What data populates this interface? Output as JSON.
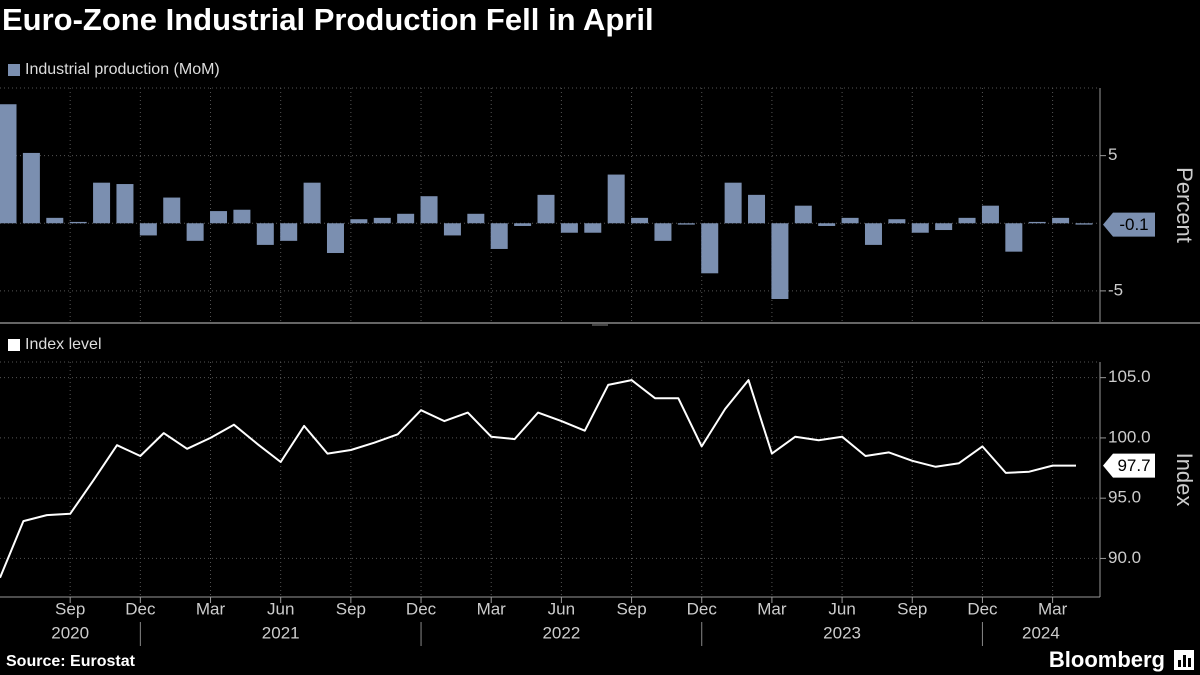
{
  "title": "Euro-Zone Industrial Production Fell in April",
  "source": "Source: Eurostat",
  "brand": "Bloomberg",
  "x_axis": {
    "count": 47,
    "ticks": [
      {
        "value": 3,
        "label": "Sep"
      },
      {
        "value": 6,
        "label": "Dec"
      },
      {
        "value": 9,
        "label": "Mar"
      },
      {
        "value": 12,
        "label": "Jun"
      },
      {
        "value": 15,
        "label": "Sep"
      },
      {
        "value": 18,
        "label": "Dec"
      },
      {
        "value": 21,
        "label": "Mar"
      },
      {
        "value": 24,
        "label": "Jun"
      },
      {
        "value": 27,
        "label": "Sep"
      },
      {
        "value": 30,
        "label": "Dec"
      },
      {
        "value": 33,
        "label": "Mar"
      },
      {
        "value": 36,
        "label": "Jun"
      },
      {
        "value": 39,
        "label": "Sep"
      },
      {
        "value": 42,
        "label": "Dec"
      },
      {
        "value": 45,
        "label": "Mar"
      }
    ],
    "years": [
      {
        "value": 3,
        "label": "2020"
      },
      {
        "value": 12,
        "label": "2021"
      },
      {
        "value": 24,
        "label": "2022"
      },
      {
        "value": 36,
        "label": "2023"
      },
      {
        "value": 44.5,
        "label": "2024"
      }
    ],
    "year_dividers": [
      6,
      18,
      30,
      42
    ]
  },
  "chart_data": [
    {
      "type": "bar",
      "y_label": "Percent",
      "grid": true,
      "series": [
        {
          "name": "Industrial production (MoM)",
          "color": "#7b8fb0",
          "values": [
            8.8,
            5.2,
            0.4,
            0.1,
            3.0,
            2.9,
            -0.9,
            1.9,
            -1.3,
            0.9,
            1.0,
            -1.6,
            -1.3,
            3.0,
            -2.2,
            0.3,
            0.4,
            0.7,
            2.0,
            -0.9,
            0.7,
            -1.9,
            -0.2,
            2.1,
            -0.7,
            -0.7,
            3.6,
            0.4,
            -1.3,
            -0.1,
            -3.7,
            3.0,
            2.1,
            -5.6,
            1.3,
            -0.2,
            0.4,
            -1.6,
            0.3,
            -0.7,
            -0.5,
            0.4,
            1.3,
            -2.1,
            0.1,
            0.4,
            -0.1
          ]
        }
      ],
      "ylim": [
        -7.3,
        10
      ],
      "yticks": [
        -5,
        5
      ]
    },
    {
      "type": "line",
      "y_label": "Index",
      "grid": true,
      "series": [
        {
          "name": "Index level",
          "color": "#ffffff",
          "values": [
            88.4,
            93.1,
            93.6,
            93.7,
            96.5,
            99.4,
            98.5,
            100.4,
            99.1,
            100.0,
            101.1,
            99.5,
            98.0,
            101.0,
            98.7,
            99.0,
            99.6,
            100.3,
            102.3,
            101.4,
            102.1,
            100.1,
            99.9,
            102.1,
            101.4,
            100.6,
            104.4,
            104.8,
            103.3,
            103.3,
            99.3,
            102.4,
            104.8,
            98.7,
            100.1,
            99.8,
            100.1,
            98.5,
            98.8,
            98.1,
            97.6,
            97.9,
            99.3,
            97.1,
            97.2,
            97.7,
            97.7
          ]
        }
      ],
      "ylim": [
        86.8,
        106.3
      ],
      "yticks": [
        {
          "value": 90,
          "label": "90.0"
        },
        {
          "value": 95,
          "label": "95.0"
        },
        {
          "value": 100,
          "label": "100.0"
        },
        {
          "value": 105,
          "label": "105.0"
        }
      ]
    }
  ]
}
